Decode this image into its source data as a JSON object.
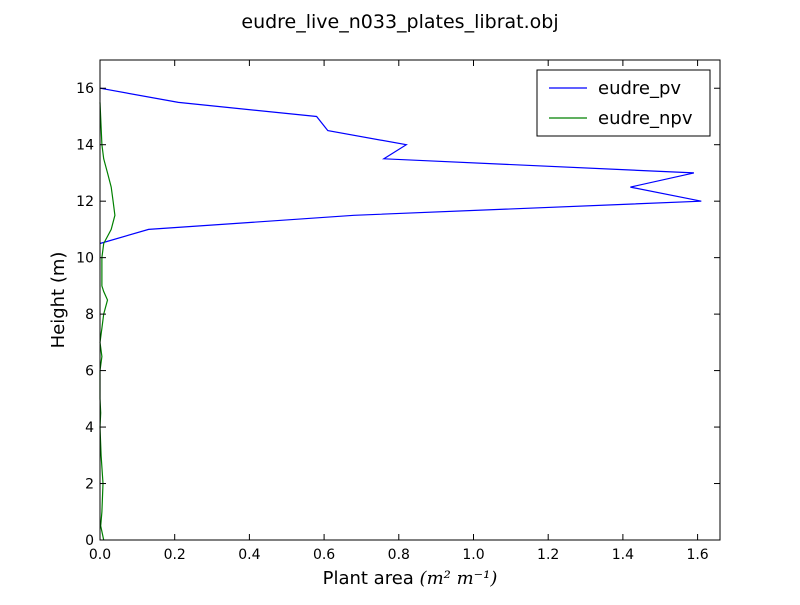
{
  "chart_data": {
    "type": "line",
    "title": "eudre_live_n033_plates_librat.obj",
    "xlabel": "Plant area",
    "xlabel_unit": "(m² m⁻¹)",
    "ylabel": "Height (m)",
    "xlim": [
      0.0,
      1.66
    ],
    "ylim": [
      0,
      17
    ],
    "x_ticks": [
      0.0,
      0.2,
      0.4,
      0.6,
      0.8,
      1.0,
      1.2,
      1.4,
      1.6
    ],
    "x_tick_labels": [
      "0.0",
      "0.2",
      "0.4",
      "0.6",
      "0.8",
      "1.0",
      "1.2",
      "1.4",
      "1.6"
    ],
    "y_ticks": [
      0,
      2,
      4,
      6,
      8,
      10,
      12,
      14,
      16
    ],
    "y_tick_labels": [
      "0",
      "2",
      "4",
      "6",
      "8",
      "10",
      "12",
      "14",
      "16"
    ],
    "grid": false,
    "legend_position": "top-right",
    "series": [
      {
        "name": "eudre_pv",
        "color": "#0000ff",
        "points": [
          {
            "x": 0.0,
            "y": 16.0
          },
          {
            "x": 0.21,
            "y": 15.5
          },
          {
            "x": 0.58,
            "y": 15.0
          },
          {
            "x": 0.61,
            "y": 14.5
          },
          {
            "x": 0.82,
            "y": 14.0
          },
          {
            "x": 0.76,
            "y": 13.5
          },
          {
            "x": 1.59,
            "y": 13.0
          },
          {
            "x": 1.42,
            "y": 12.5
          },
          {
            "x": 1.61,
            "y": 12.0
          },
          {
            "x": 0.68,
            "y": 11.5
          },
          {
            "x": 0.13,
            "y": 11.0
          },
          {
            "x": 0.0,
            "y": 10.5
          }
        ]
      },
      {
        "name": "eudre_npv",
        "color": "#008000",
        "points": [
          {
            "x": 0.0,
            "y": 15.5
          },
          {
            "x": 0.005,
            "y": 14.0
          },
          {
            "x": 0.01,
            "y": 13.5
          },
          {
            "x": 0.02,
            "y": 13.0
          },
          {
            "x": 0.03,
            "y": 12.5
          },
          {
            "x": 0.035,
            "y": 12.0
          },
          {
            "x": 0.04,
            "y": 11.5
          },
          {
            "x": 0.03,
            "y": 11.0
          },
          {
            "x": 0.01,
            "y": 10.5
          },
          {
            "x": 0.005,
            "y": 10.0
          },
          {
            "x": 0.005,
            "y": 9.0
          },
          {
            "x": 0.01,
            "y": 8.8
          },
          {
            "x": 0.02,
            "y": 8.5
          },
          {
            "x": 0.01,
            "y": 8.0
          },
          {
            "x": 0.005,
            "y": 7.5
          },
          {
            "x": 0.0,
            "y": 7.0
          },
          {
            "x": 0.005,
            "y": 6.5
          },
          {
            "x": 0.0,
            "y": 6.0
          },
          {
            "x": 0.0,
            "y": 5.0
          },
          {
            "x": 0.002,
            "y": 4.5
          },
          {
            "x": 0.0,
            "y": 4.0
          },
          {
            "x": 0.003,
            "y": 3.0
          },
          {
            "x": 0.008,
            "y": 2.0
          },
          {
            "x": 0.005,
            "y": 1.0
          },
          {
            "x": 0.002,
            "y": 0.5
          },
          {
            "x": 0.01,
            "y": 0.0
          }
        ]
      }
    ]
  }
}
